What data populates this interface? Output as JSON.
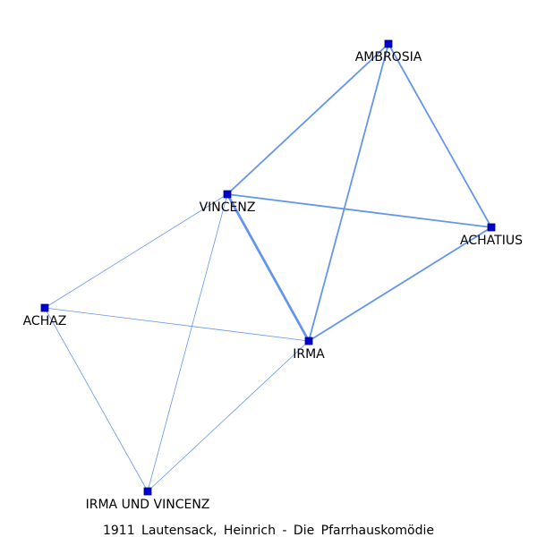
{
  "title": "1911  Lautensack,  Heinrich  -  Die  Pfarrhauskomödie",
  "colors": {
    "edge": "#6495ed",
    "node_fill": "#0000cd",
    "node_stroke": "#000080"
  },
  "nodes": [
    {
      "id": "AMBROSIA",
      "label": "AMBROSIA"
    },
    {
      "id": "VINCENZ",
      "label": "VINCENZ"
    },
    {
      "id": "ACHATIUS",
      "label": "ACHATIUS"
    },
    {
      "id": "ACHAZ",
      "label": "ACHAZ"
    },
    {
      "id": "IRMA",
      "label": "IRMA"
    },
    {
      "id": "IRMA_UND_VINCENZ",
      "label": "IRMA UND VINCENZ"
    }
  ],
  "edges": [
    {
      "source": "AMBROSIA",
      "target": "VINCENZ",
      "weight": 2
    },
    {
      "source": "AMBROSIA",
      "target": "ACHATIUS",
      "weight": 2
    },
    {
      "source": "AMBROSIA",
      "target": "IRMA",
      "weight": 2
    },
    {
      "source": "VINCENZ",
      "target": "ACHATIUS",
      "weight": 2
    },
    {
      "source": "VINCENZ",
      "target": "IRMA",
      "weight": 3
    },
    {
      "source": "VINCENZ",
      "target": "ACHAZ",
      "weight": 1
    },
    {
      "source": "VINCENZ",
      "target": "IRMA_UND_VINCENZ",
      "weight": 1
    },
    {
      "source": "ACHATIUS",
      "target": "IRMA",
      "weight": 2
    },
    {
      "source": "ACHAZ",
      "target": "IRMA",
      "weight": 1
    },
    {
      "source": "ACHAZ",
      "target": "IRMA_UND_VINCENZ",
      "weight": 1
    },
    {
      "source": "IRMA",
      "target": "IRMA_UND_VINCENZ",
      "weight": 1
    }
  ]
}
